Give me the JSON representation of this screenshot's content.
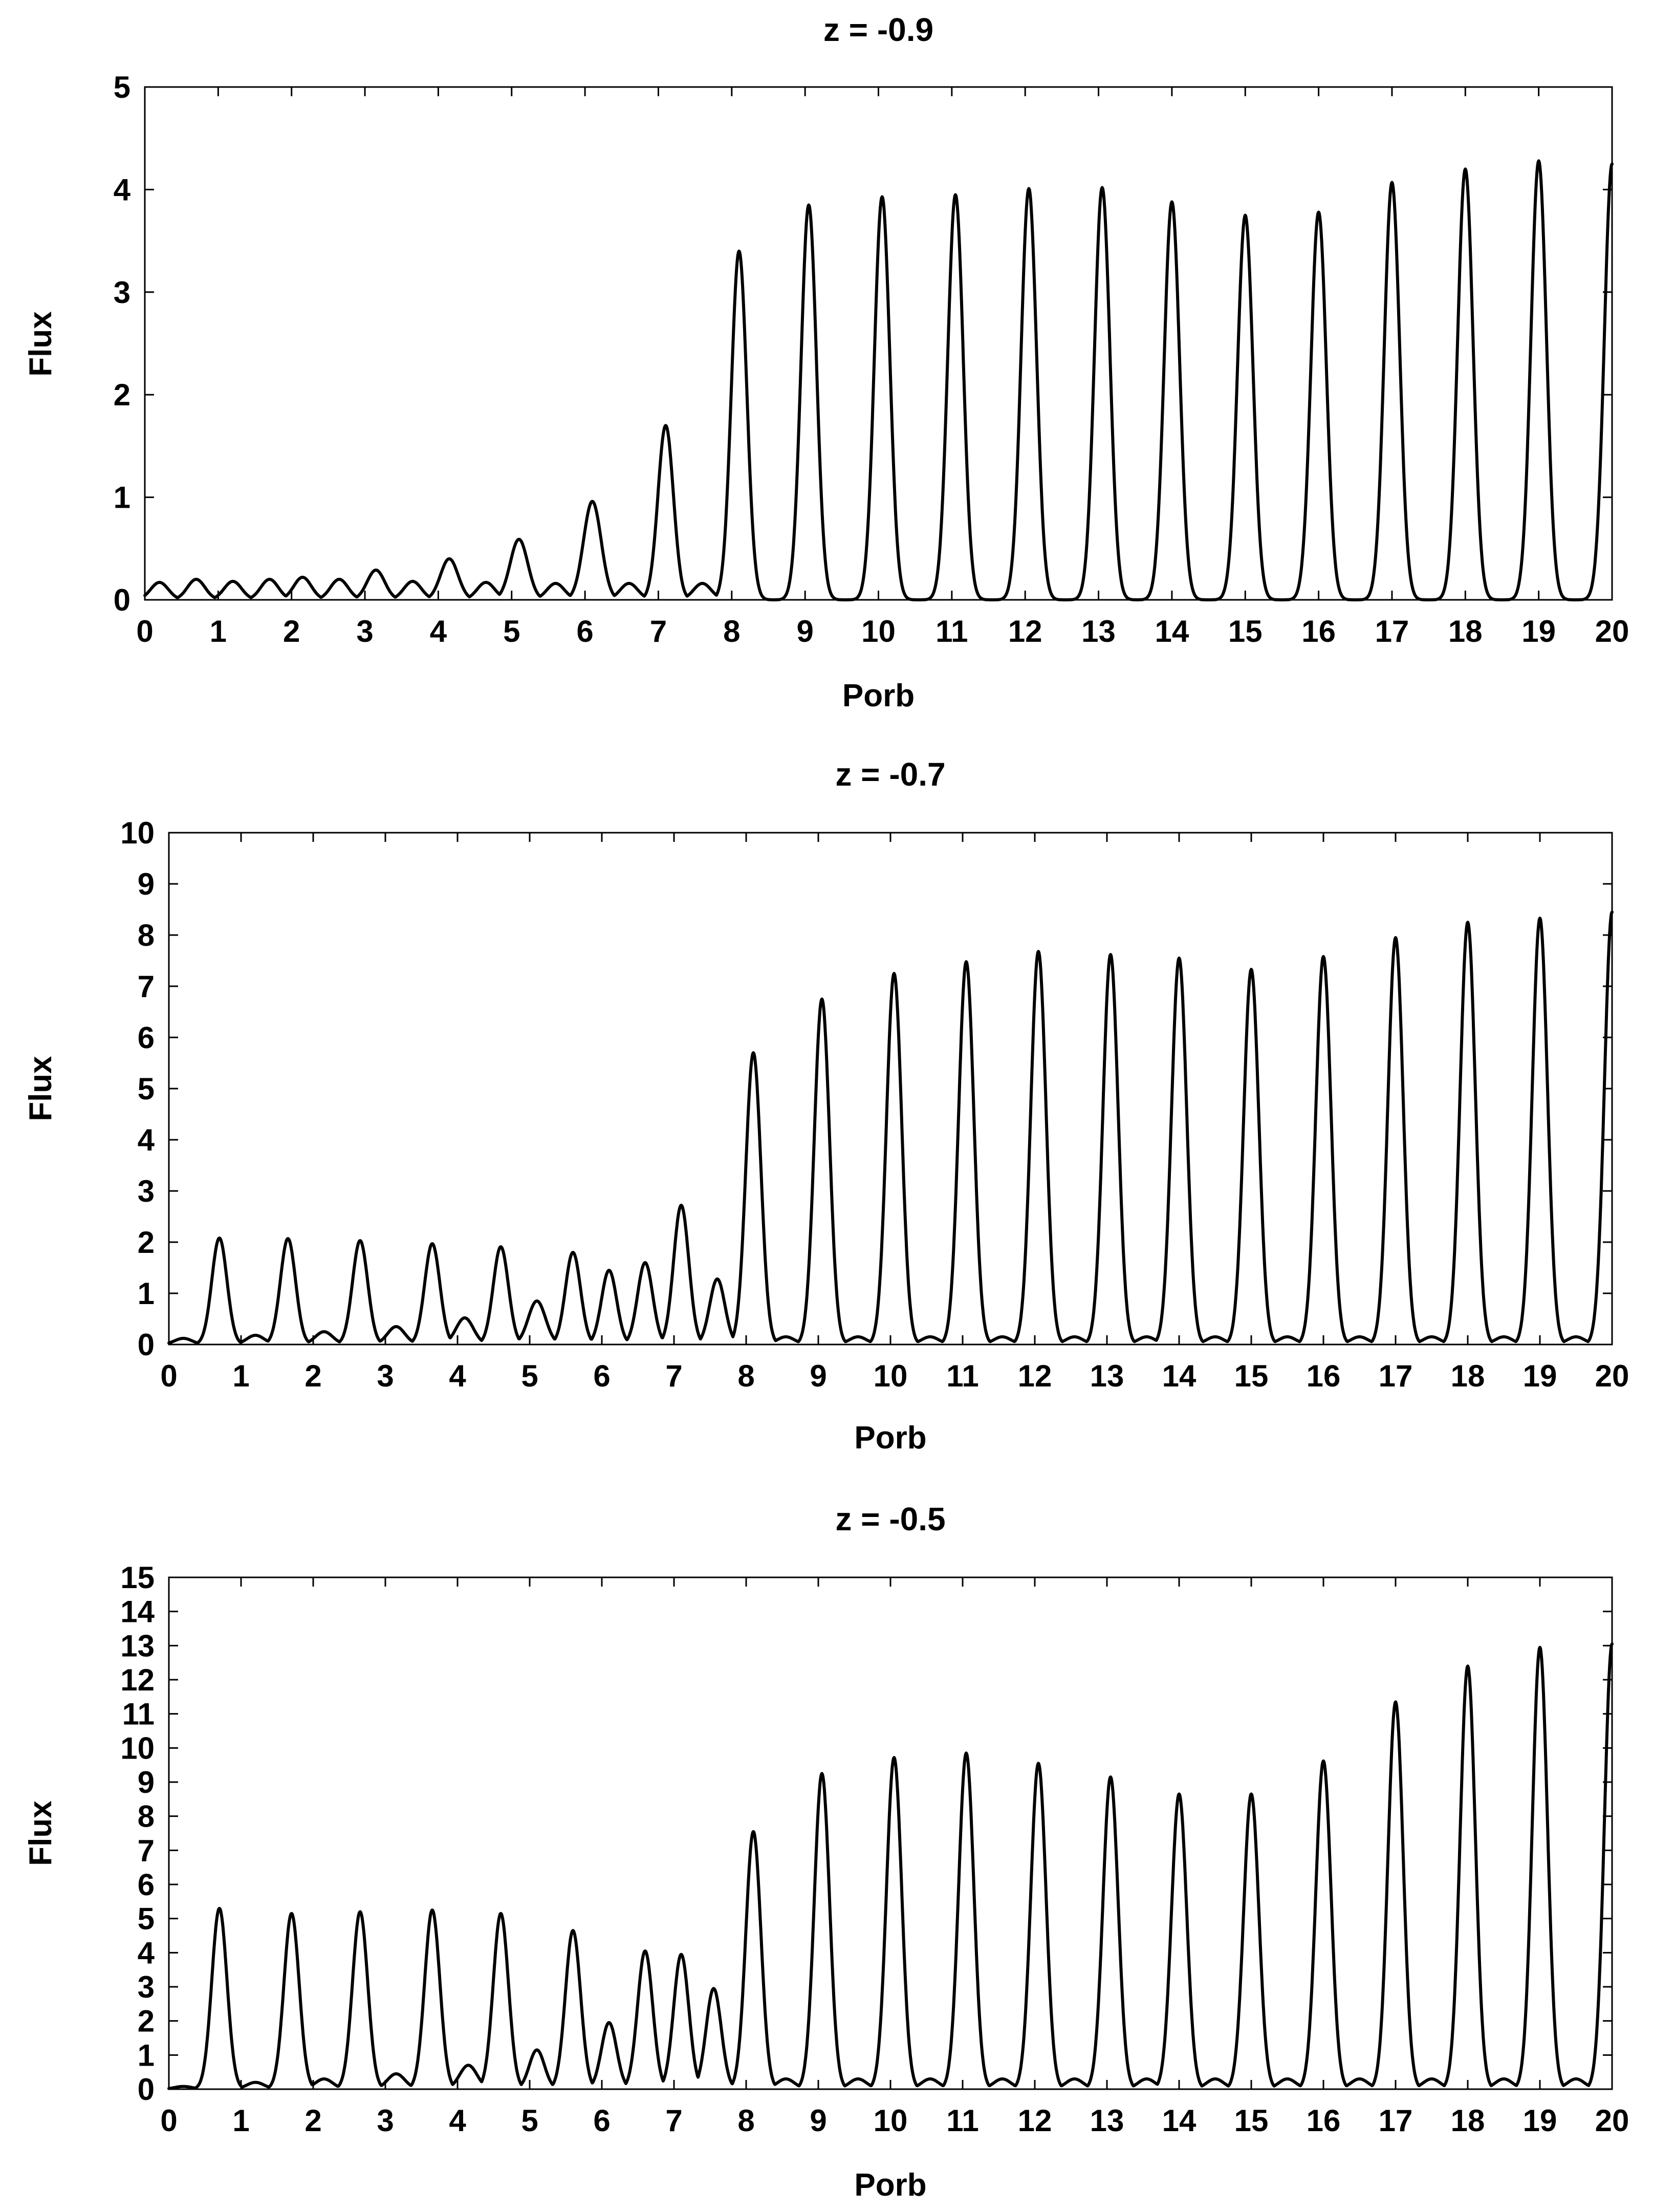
{
  "chart_data": [
    {
      "type": "line",
      "title": "z = -0.9",
      "xlabel": "Porb",
      "ylabel": "Flux",
      "xlim": [
        0,
        20
      ],
      "ylim": [
        0,
        5
      ],
      "x_ticks": [
        0,
        1,
        2,
        3,
        4,
        5,
        6,
        7,
        8,
        9,
        10,
        11,
        12,
        13,
        14,
        15,
        16,
        17,
        18,
        19,
        20
      ],
      "y_ticks": [
        0,
        1,
        2,
        3,
        4,
        5
      ],
      "series": [
        {
          "name": "flux",
          "peaks": [
            {
              "x": 0.2,
              "y": 0.17
            },
            {
              "x": 0.7,
              "y": 0.2
            },
            {
              "x": 1.2,
              "y": 0.18
            },
            {
              "x": 1.7,
              "y": 0.2
            },
            {
              "x": 2.15,
              "y": 0.22
            },
            {
              "x": 2.65,
              "y": 0.2
            },
            {
              "x": 3.15,
              "y": 0.29
            },
            {
              "x": 3.65,
              "y": 0.18
            },
            {
              "x": 4.15,
              "y": 0.4
            },
            {
              "x": 4.65,
              "y": 0.17
            },
            {
              "x": 5.1,
              "y": 0.59
            },
            {
              "x": 5.6,
              "y": 0.16
            },
            {
              "x": 6.1,
              "y": 0.96
            },
            {
              "x": 6.6,
              "y": 0.16
            },
            {
              "x": 7.1,
              "y": 1.7
            },
            {
              "x": 7.6,
              "y": 0.16
            },
            {
              "x": 8.1,
              "y": 3.4
            },
            {
              "x": 9.05,
              "y": 3.85
            },
            {
              "x": 10.05,
              "y": 3.93
            },
            {
              "x": 11.05,
              "y": 3.95
            },
            {
              "x": 12.05,
              "y": 4.01
            },
            {
              "x": 13.05,
              "y": 4.02
            },
            {
              "x": 14.0,
              "y": 3.88
            },
            {
              "x": 15.0,
              "y": 3.75
            },
            {
              "x": 16.0,
              "y": 3.78
            },
            {
              "x": 17.0,
              "y": 4.07
            },
            {
              "x": 18.0,
              "y": 4.2
            },
            {
              "x": 19.0,
              "y": 4.28
            },
            {
              "x": 20.0,
              "y": 4.25
            }
          ]
        }
      ]
    },
    {
      "type": "line",
      "title": "z = -0.7",
      "xlabel": "Porb",
      "ylabel": "Flux",
      "xlim": [
        0,
        20
      ],
      "ylim": [
        0,
        10
      ],
      "x_ticks": [
        0,
        1,
        2,
        3,
        4,
        5,
        6,
        7,
        8,
        9,
        10,
        11,
        12,
        13,
        14,
        15,
        16,
        17,
        18,
        19,
        20
      ],
      "y_ticks": [
        0,
        1,
        2,
        3,
        4,
        5,
        6,
        7,
        8,
        9,
        10
      ],
      "series": [
        {
          "name": "flux",
          "peaks": [
            {
              "x": 0.2,
              "y": 0.12
            },
            {
              "x": 0.7,
              "y": 2.08
            },
            {
              "x": 1.2,
              "y": 0.18
            },
            {
              "x": 1.65,
              "y": 2.07
            },
            {
              "x": 2.15,
              "y": 0.25
            },
            {
              "x": 2.65,
              "y": 2.03
            },
            {
              "x": 3.15,
              "y": 0.35
            },
            {
              "x": 3.65,
              "y": 1.97
            },
            {
              "x": 4.1,
              "y": 0.52
            },
            {
              "x": 4.6,
              "y": 1.91
            },
            {
              "x": 5.1,
              "y": 0.85
            },
            {
              "x": 5.6,
              "y": 1.8
            },
            {
              "x": 6.1,
              "y": 1.45
            },
            {
              "x": 6.6,
              "y": 1.6
            },
            {
              "x": 7.1,
              "y": 2.72
            },
            {
              "x": 7.6,
              "y": 1.28
            },
            {
              "x": 8.1,
              "y": 5.7
            },
            {
              "x": 8.55,
              "y": 0.15
            },
            {
              "x": 9.05,
              "y": 6.75
            },
            {
              "x": 9.55,
              "y": 0.15
            },
            {
              "x": 10.05,
              "y": 7.25
            },
            {
              "x": 10.55,
              "y": 0.15
            },
            {
              "x": 11.05,
              "y": 7.48
            },
            {
              "x": 11.55,
              "y": 0.15
            },
            {
              "x": 12.05,
              "y": 7.68
            },
            {
              "x": 12.55,
              "y": 0.15
            },
            {
              "x": 13.05,
              "y": 7.62
            },
            {
              "x": 13.55,
              "y": 0.15
            },
            {
              "x": 14.0,
              "y": 7.55
            },
            {
              "x": 14.5,
              "y": 0.15
            },
            {
              "x": 15.0,
              "y": 7.33
            },
            {
              "x": 15.5,
              "y": 0.15
            },
            {
              "x": 16.0,
              "y": 7.58
            },
            {
              "x": 16.5,
              "y": 0.15
            },
            {
              "x": 17.0,
              "y": 7.95
            },
            {
              "x": 17.5,
              "y": 0.15
            },
            {
              "x": 18.0,
              "y": 8.25
            },
            {
              "x": 18.5,
              "y": 0.15
            },
            {
              "x": 19.0,
              "y": 8.33
            },
            {
              "x": 19.5,
              "y": 0.15
            },
            {
              "x": 20.0,
              "y": 8.45
            }
          ]
        }
      ]
    },
    {
      "type": "line",
      "title": "z = -0.5",
      "xlabel": "Porb",
      "ylabel": "Flux",
      "xlim": [
        0,
        20
      ],
      "ylim": [
        0,
        15
      ],
      "x_ticks": [
        0,
        1,
        2,
        3,
        4,
        5,
        6,
        7,
        8,
        9,
        10,
        11,
        12,
        13,
        14,
        15,
        16,
        17,
        18,
        19,
        20
      ],
      "y_ticks": [
        0,
        1,
        2,
        3,
        4,
        5,
        6,
        7,
        8,
        9,
        10,
        11,
        12,
        13,
        14,
        15
      ],
      "series": [
        {
          "name": "flux",
          "peaks": [
            {
              "x": 0.2,
              "y": 0.08
            },
            {
              "x": 0.7,
              "y": 5.3
            },
            {
              "x": 1.2,
              "y": 0.2
            },
            {
              "x": 1.7,
              "y": 5.15
            },
            {
              "x": 2.15,
              "y": 0.3
            },
            {
              "x": 2.65,
              "y": 5.2
            },
            {
              "x": 3.15,
              "y": 0.45
            },
            {
              "x": 3.65,
              "y": 5.25
            },
            {
              "x": 4.15,
              "y": 0.7
            },
            {
              "x": 4.6,
              "y": 5.15
            },
            {
              "x": 5.1,
              "y": 1.15
            },
            {
              "x": 5.6,
              "y": 4.65
            },
            {
              "x": 6.1,
              "y": 1.95
            },
            {
              "x": 6.6,
              "y": 4.05
            },
            {
              "x": 7.1,
              "y": 3.95
            },
            {
              "x": 7.55,
              "y": 2.95
            },
            {
              "x": 8.1,
              "y": 7.55
            },
            {
              "x": 8.55,
              "y": 0.3
            },
            {
              "x": 9.05,
              "y": 9.25
            },
            {
              "x": 9.55,
              "y": 0.3
            },
            {
              "x": 10.05,
              "y": 9.72
            },
            {
              "x": 10.55,
              "y": 0.3
            },
            {
              "x": 11.05,
              "y": 9.85
            },
            {
              "x": 11.55,
              "y": 0.3
            },
            {
              "x": 12.05,
              "y": 9.55
            },
            {
              "x": 12.55,
              "y": 0.3
            },
            {
              "x": 13.05,
              "y": 9.15
            },
            {
              "x": 13.55,
              "y": 0.3
            },
            {
              "x": 14.0,
              "y": 8.65
            },
            {
              "x": 14.5,
              "y": 0.3
            },
            {
              "x": 15.0,
              "y": 8.65
            },
            {
              "x": 15.5,
              "y": 0.3
            },
            {
              "x": 16.0,
              "y": 9.62
            },
            {
              "x": 16.5,
              "y": 0.3
            },
            {
              "x": 17.0,
              "y": 11.35
            },
            {
              "x": 17.5,
              "y": 0.3
            },
            {
              "x": 18.0,
              "y": 12.4
            },
            {
              "x": 18.5,
              "y": 0.3
            },
            {
              "x": 19.0,
              "y": 12.95
            },
            {
              "x": 19.5,
              "y": 0.3
            },
            {
              "x": 20.0,
              "y": 13.05
            }
          ]
        }
      ]
    }
  ]
}
